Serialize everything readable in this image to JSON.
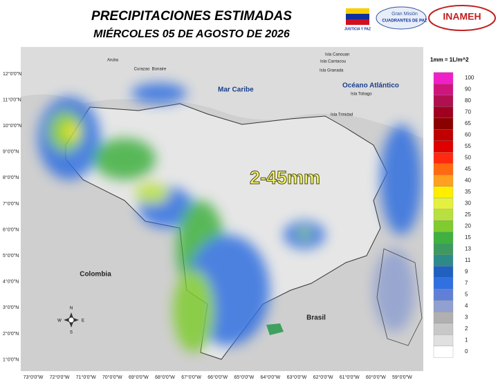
{
  "header": {
    "title": "PRECIPITACIONES  ESTIMADAS",
    "subtitle": "MIÉRCOLES 05 DE AGOSTO DE 2026",
    "logos": [
      "JUSTICIA Y PAZ",
      "Gran Misión",
      "CUADRANTES DE PAZ",
      "INAMEH"
    ]
  },
  "map": {
    "sea": "Mar Caribe",
    "ocean": "Océano Atlántico",
    "country_west": "Colombia",
    "country_south": "Brasil",
    "range": "2-45mm",
    "islands": [
      "Aruba",
      "Curazao",
      "Bonaire",
      "Isla Canouan",
      "Isla Carriacou",
      "Isla Granada",
      "Isla Trinidad",
      "Isla Tobago"
    ],
    "compass": [
      "N",
      "E",
      "S",
      "W"
    ],
    "lat_labels": [
      "12°0'0\"N",
      "11°0'0\"N",
      "10°0'0\"N",
      "9°0'0\"N",
      "8°0'0\"N",
      "7°0'0\"N",
      "6°0'0\"N",
      "5°0'0\"N",
      "4°0'0\"N",
      "3°0'0\"N",
      "2°0'0\"N",
      "1°0'0\"N"
    ],
    "lon_labels": [
      "73°0'0\"W",
      "72°0'0\"W",
      "71°0'0\"W",
      "70°0'0\"W",
      "69°0'0\"W",
      "68°0'0\"W",
      "67°0'0\"W",
      "66°0'0\"W",
      "65°0'0\"W",
      "64°0'0\"W",
      "63°0'0\"W",
      "62°0'0\"W",
      "61°0'0\"W",
      "60°0'0\"W",
      "59°0'0\"W"
    ]
  },
  "legend": {
    "unit": "1mm = 1L/m^2",
    "items": [
      {
        "label": "100",
        "color": "#f020c8"
      },
      {
        "label": "90",
        "color": "#d0147e"
      },
      {
        "label": "80",
        "color": "#b01050"
      },
      {
        "label": "70",
        "color": "#a00020"
      },
      {
        "label": "65",
        "color": "#8b0000"
      },
      {
        "label": "60",
        "color": "#c00000"
      },
      {
        "label": "55",
        "color": "#e00000"
      },
      {
        "label": "50",
        "color": "#ff2a10"
      },
      {
        "label": "45",
        "color": "#ff6a10"
      },
      {
        "label": "40",
        "color": "#ffa020"
      },
      {
        "label": "35",
        "color": "#ffee00"
      },
      {
        "label": "30",
        "color": "#e4f040"
      },
      {
        "label": "25",
        "color": "#b8e040"
      },
      {
        "label": "20",
        "color": "#80cc30"
      },
      {
        "label": "15",
        "color": "#40b040"
      },
      {
        "label": "13",
        "color": "#3c9a60"
      },
      {
        "label": "11",
        "color": "#2e8a8a"
      },
      {
        "label": "9",
        "color": "#2060c0"
      },
      {
        "label": "7",
        "color": "#3070e0"
      },
      {
        "label": "5",
        "color": "#6080d8"
      },
      {
        "label": "4",
        "color": "#90a0d0"
      },
      {
        "label": "3",
        "color": "#b0b0b0"
      },
      {
        "label": "2",
        "color": "#c8c8c8"
      },
      {
        "label": "1",
        "color": "#e0e0e0"
      },
      {
        "label": "0",
        "color": "#ffffff"
      }
    ]
  }
}
